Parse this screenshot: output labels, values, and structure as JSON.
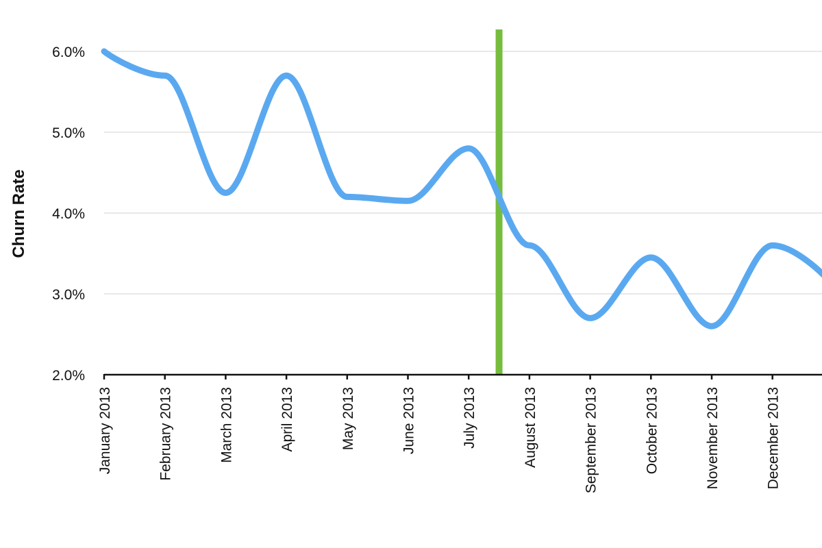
{
  "chart_data": {
    "type": "line",
    "title": "",
    "xlabel": "",
    "ylabel": "Churn Rate",
    "x": [
      "January 2013",
      "February 2013",
      "March 2013",
      "April 2013",
      "May 2013",
      "June 2013",
      "July 2013",
      "August 2013",
      "September 2013",
      "October 2013",
      "November 2013",
      "December 2013"
    ],
    "series": [
      {
        "name": "",
        "values": [
          6.0,
          5.7,
          4.25,
          5.7,
          4.2,
          4.15,
          4.8,
          3.6,
          2.7,
          3.45,
          2.6,
          3.6
        ],
        "continues_past_last_category_to": 3.1
      }
    ],
    "ylim": [
      2.0,
      6.0
    ],
    "yticks": [
      "2.0%",
      "3.0%",
      "4.0%",
      "5.0%",
      "6.0%"
    ],
    "ytick_values": [
      2.0,
      3.0,
      4.0,
      5.0,
      6.0
    ],
    "grid": true,
    "marker": {
      "type": "vertical-line",
      "position_between": [
        "July 2013",
        "August 2013"
      ],
      "fraction": 0.5,
      "color": "#76bd3f"
    },
    "colors": {
      "line": "#5aa9f0",
      "grid": "#d9d9d9",
      "axis": "#111111"
    },
    "x_tick_label_rotation": "vertical"
  }
}
